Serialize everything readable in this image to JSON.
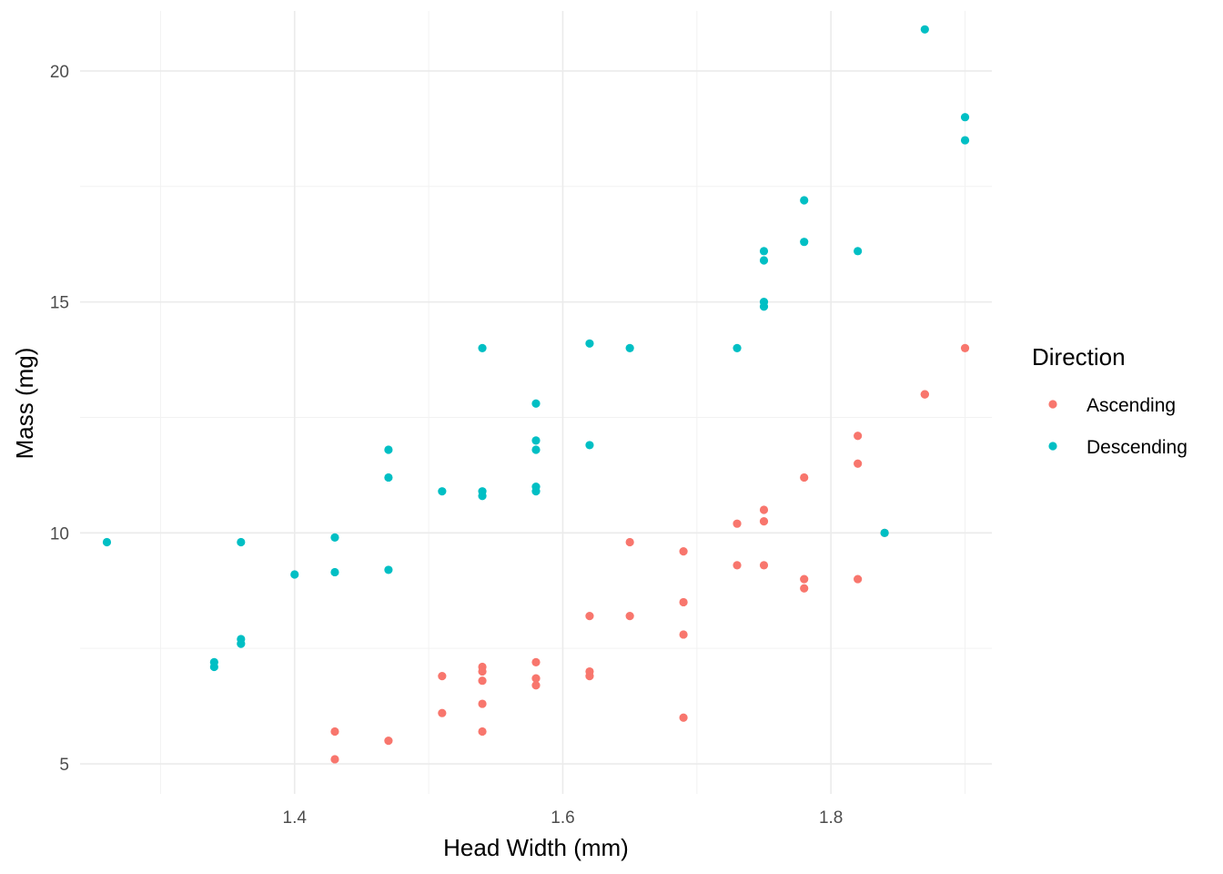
{
  "chart_data": {
    "type": "scatter",
    "title": "",
    "xlabel": "Head Width (mm)",
    "ylabel": "Mass (mg)",
    "xlim": [
      1.24,
      1.92
    ],
    "ylim": [
      4.35,
      21.3
    ],
    "x_ticks": [
      1.4,
      1.6,
      1.8
    ],
    "x_tick_labels": [
      "1.4",
      "1.6",
      "1.8"
    ],
    "y_ticks": [
      5,
      10,
      15,
      20
    ],
    "y_tick_labels": [
      "5",
      "10",
      "15",
      "20"
    ],
    "grid": true,
    "legend": {
      "title": "Direction",
      "position": "right"
    },
    "series": [
      {
        "name": "Ascending",
        "color": "#F8766D",
        "points": [
          [
            1.43,
            5.1
          ],
          [
            1.43,
            5.7
          ],
          [
            1.47,
            5.5
          ],
          [
            1.51,
            6.1
          ],
          [
            1.51,
            6.9
          ],
          [
            1.54,
            5.7
          ],
          [
            1.54,
            6.3
          ],
          [
            1.54,
            6.8
          ],
          [
            1.54,
            7.0
          ],
          [
            1.54,
            7.1
          ],
          [
            1.58,
            6.7
          ],
          [
            1.58,
            6.85
          ],
          [
            1.58,
            7.2
          ],
          [
            1.62,
            6.9
          ],
          [
            1.62,
            7.0
          ],
          [
            1.62,
            8.2
          ],
          [
            1.65,
            8.2
          ],
          [
            1.65,
            9.8
          ],
          [
            1.69,
            6.0
          ],
          [
            1.69,
            7.8
          ],
          [
            1.69,
            8.5
          ],
          [
            1.69,
            9.6
          ],
          [
            1.73,
            9.3
          ],
          [
            1.73,
            10.2
          ],
          [
            1.75,
            9.3
          ],
          [
            1.75,
            10.25
          ],
          [
            1.75,
            10.5
          ],
          [
            1.78,
            8.8
          ],
          [
            1.78,
            9.0
          ],
          [
            1.78,
            11.2
          ],
          [
            1.82,
            9.0
          ],
          [
            1.82,
            11.5
          ],
          [
            1.82,
            12.1
          ],
          [
            1.84,
            10.0
          ],
          [
            1.87,
            13.0
          ],
          [
            1.87,
            13.0
          ],
          [
            1.9,
            14.0
          ]
        ]
      },
      {
        "name": "Descending",
        "color": "#00BFC4",
        "points": [
          [
            1.26,
            9.8
          ],
          [
            1.34,
            7.1
          ],
          [
            1.34,
            7.2
          ],
          [
            1.36,
            7.6
          ],
          [
            1.36,
            7.7
          ],
          [
            1.36,
            9.8
          ],
          [
            1.4,
            9.1
          ],
          [
            1.43,
            9.15
          ],
          [
            1.43,
            9.9
          ],
          [
            1.47,
            9.2
          ],
          [
            1.47,
            11.2
          ],
          [
            1.47,
            11.8
          ],
          [
            1.51,
            10.9
          ],
          [
            1.54,
            10.8
          ],
          [
            1.54,
            10.9
          ],
          [
            1.54,
            14.0
          ],
          [
            1.58,
            10.9
          ],
          [
            1.58,
            11.0
          ],
          [
            1.58,
            11.8
          ],
          [
            1.58,
            12.0
          ],
          [
            1.58,
            12.8
          ],
          [
            1.62,
            11.9
          ],
          [
            1.62,
            14.1
          ],
          [
            1.65,
            14.0
          ],
          [
            1.73,
            14.0
          ],
          [
            1.75,
            14.9
          ],
          [
            1.75,
            15.0
          ],
          [
            1.75,
            15.9
          ],
          [
            1.75,
            16.1
          ],
          [
            1.78,
            16.3
          ],
          [
            1.78,
            17.2
          ],
          [
            1.82,
            16.1
          ],
          [
            1.84,
            10.0
          ],
          [
            1.87,
            20.9
          ],
          [
            1.9,
            18.5
          ],
          [
            1.9,
            19.0
          ]
        ]
      }
    ]
  }
}
